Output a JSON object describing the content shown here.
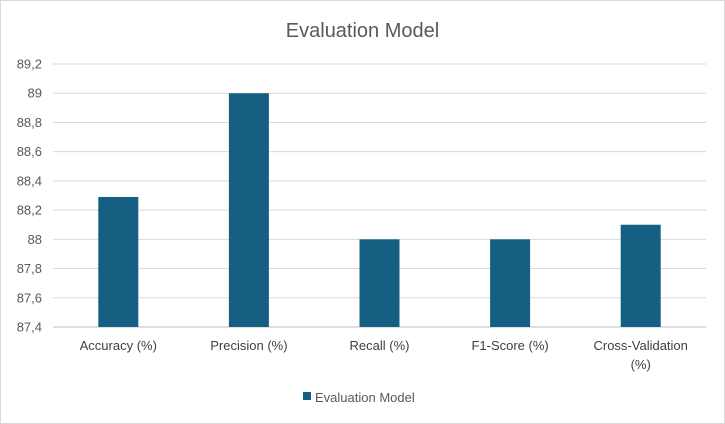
{
  "chart_data": {
    "type": "bar",
    "title": "Evaluation Model",
    "categories": [
      "Accuracy (%)",
      "Precision (%)",
      "Recall (%)",
      "F1-Score (%)",
      "Cross-Validation (%)"
    ],
    "series": [
      {
        "name": "Evaluation Model",
        "values": [
          88.29,
          89.0,
          88.0,
          88.0,
          88.1
        ],
        "color": "#156082"
      }
    ],
    "yticks": [
      "87,4",
      "87,6",
      "87,8",
      "88",
      "88,2",
      "88,4",
      "88,6",
      "88,8",
      "89",
      "89,2"
    ],
    "ylim": [
      87.4,
      89.2
    ],
    "grid": true,
    "legend": "bottom"
  }
}
